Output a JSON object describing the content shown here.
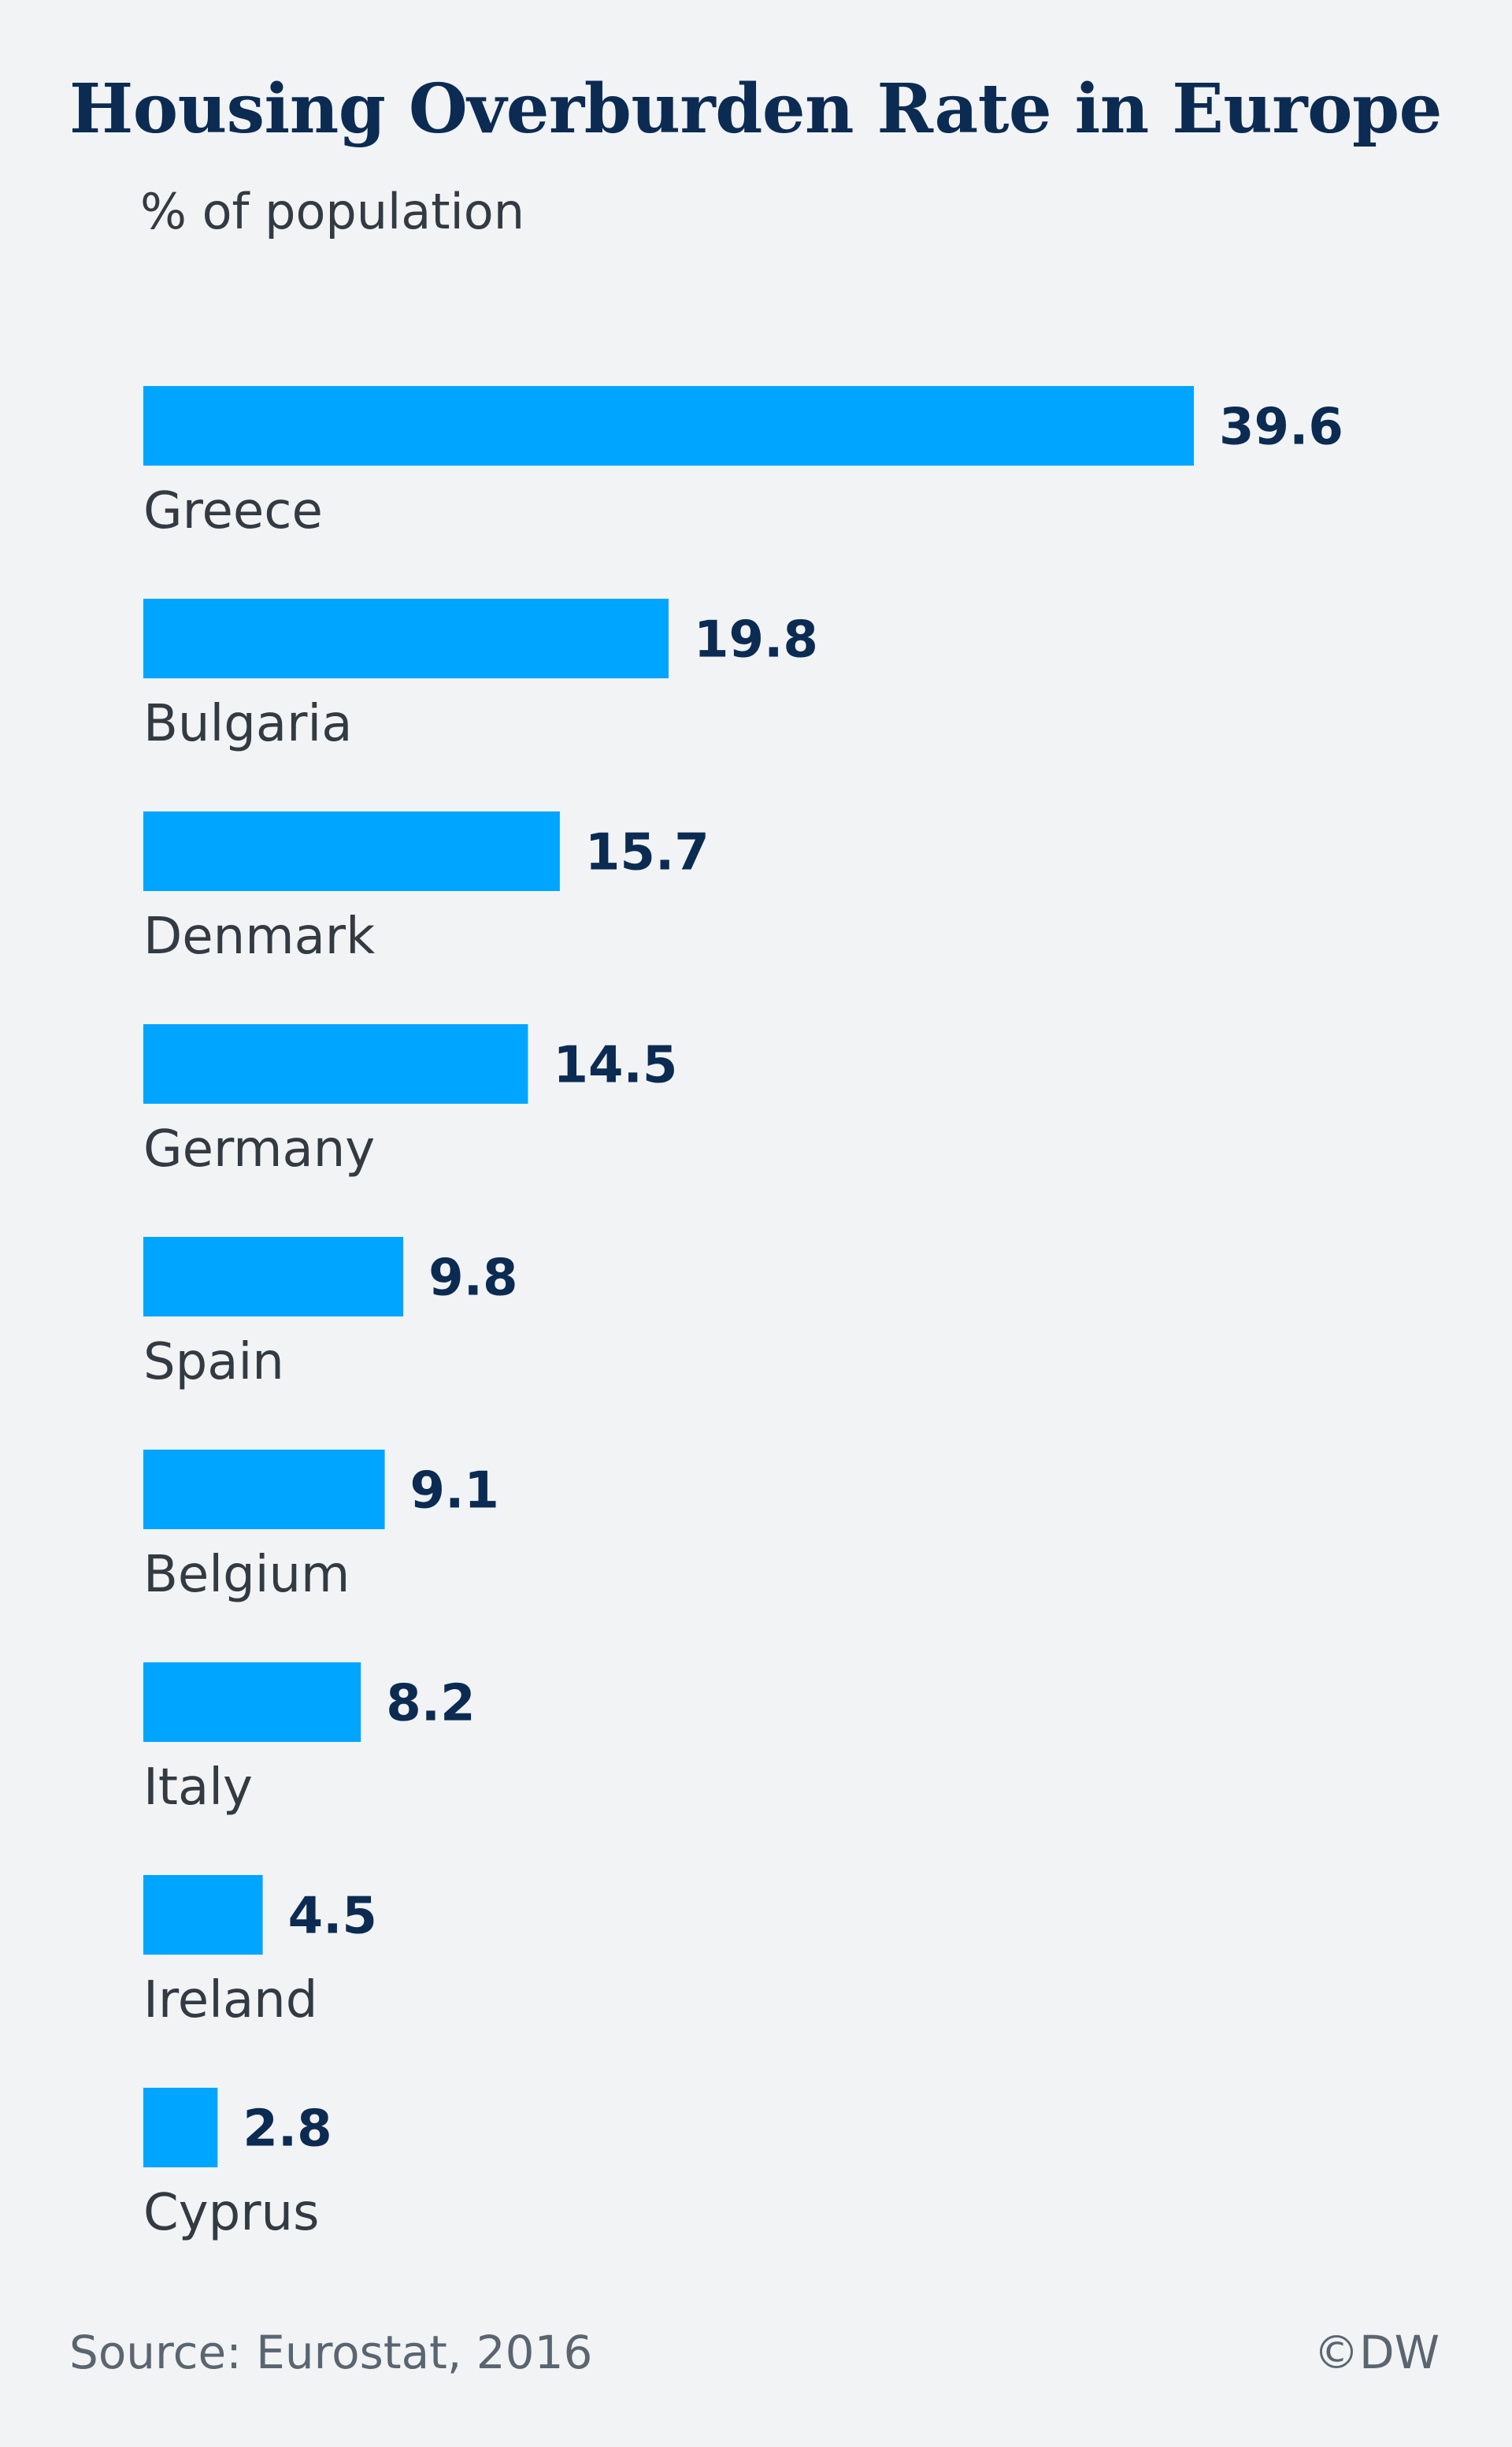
{
  "title": "Housing Overburden Rate in Europe",
  "subtitle": "% of population",
  "footer": {
    "source": "Source: Eurostat, 2016",
    "credit": "©DW"
  },
  "colors": {
    "bar": "#00a5ff",
    "value_label": "#0c2b52",
    "category_label": "#333a42",
    "background": "#f1f3f5"
  },
  "chart_data": {
    "type": "bar",
    "orientation": "horizontal",
    "categories": [
      "Greece",
      "Bulgaria",
      "Denmark",
      "Germany",
      "Spain",
      "Belgium",
      "Italy",
      "Ireland",
      "Cyprus"
    ],
    "values": [
      39.6,
      19.8,
      15.7,
      14.5,
      9.8,
      9.1,
      8.2,
      4.5,
      2.8
    ],
    "value_labels": [
      "39.6",
      "19.8",
      "15.7",
      "14.5",
      "9.8",
      "9.1",
      "8.2",
      "4.5",
      "2.8"
    ],
    "title": "Housing Overburden Rate in Europe",
    "subtitle": "% of population",
    "xlim": [
      0,
      39.6
    ],
    "grid": false,
    "legend": false
  }
}
